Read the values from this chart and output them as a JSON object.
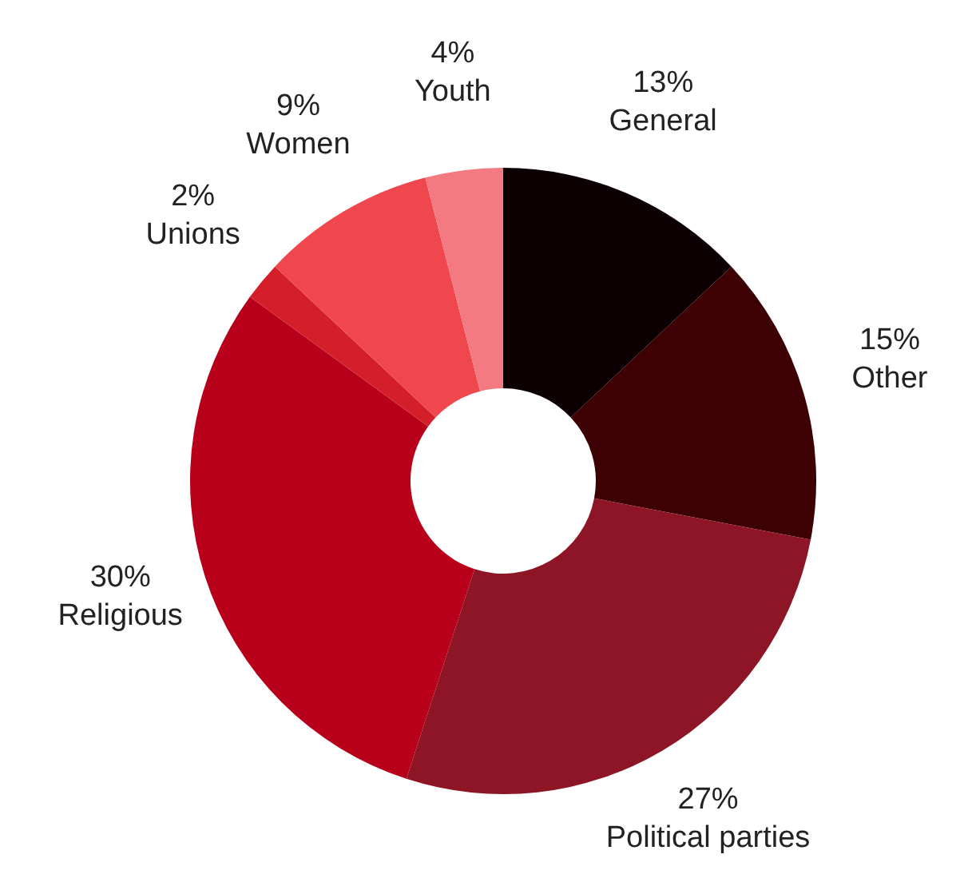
{
  "chart_data": {
    "type": "donut",
    "categories": [
      "General",
      "Other",
      "Political parties",
      "Religious",
      "Unions",
      "Women",
      "Youth"
    ],
    "values": [
      13,
      15,
      27,
      30,
      2,
      9,
      4
    ],
    "colors": [
      "#0d0003",
      "#3d0003",
      "#8e1525",
      "#b8001a",
      "#d41f2a",
      "#f0474f",
      "#f47a82"
    ],
    "value_labels": [
      "13%",
      "15%",
      "27%",
      "30%",
      "2%",
      "9%",
      "4%"
    ]
  }
}
